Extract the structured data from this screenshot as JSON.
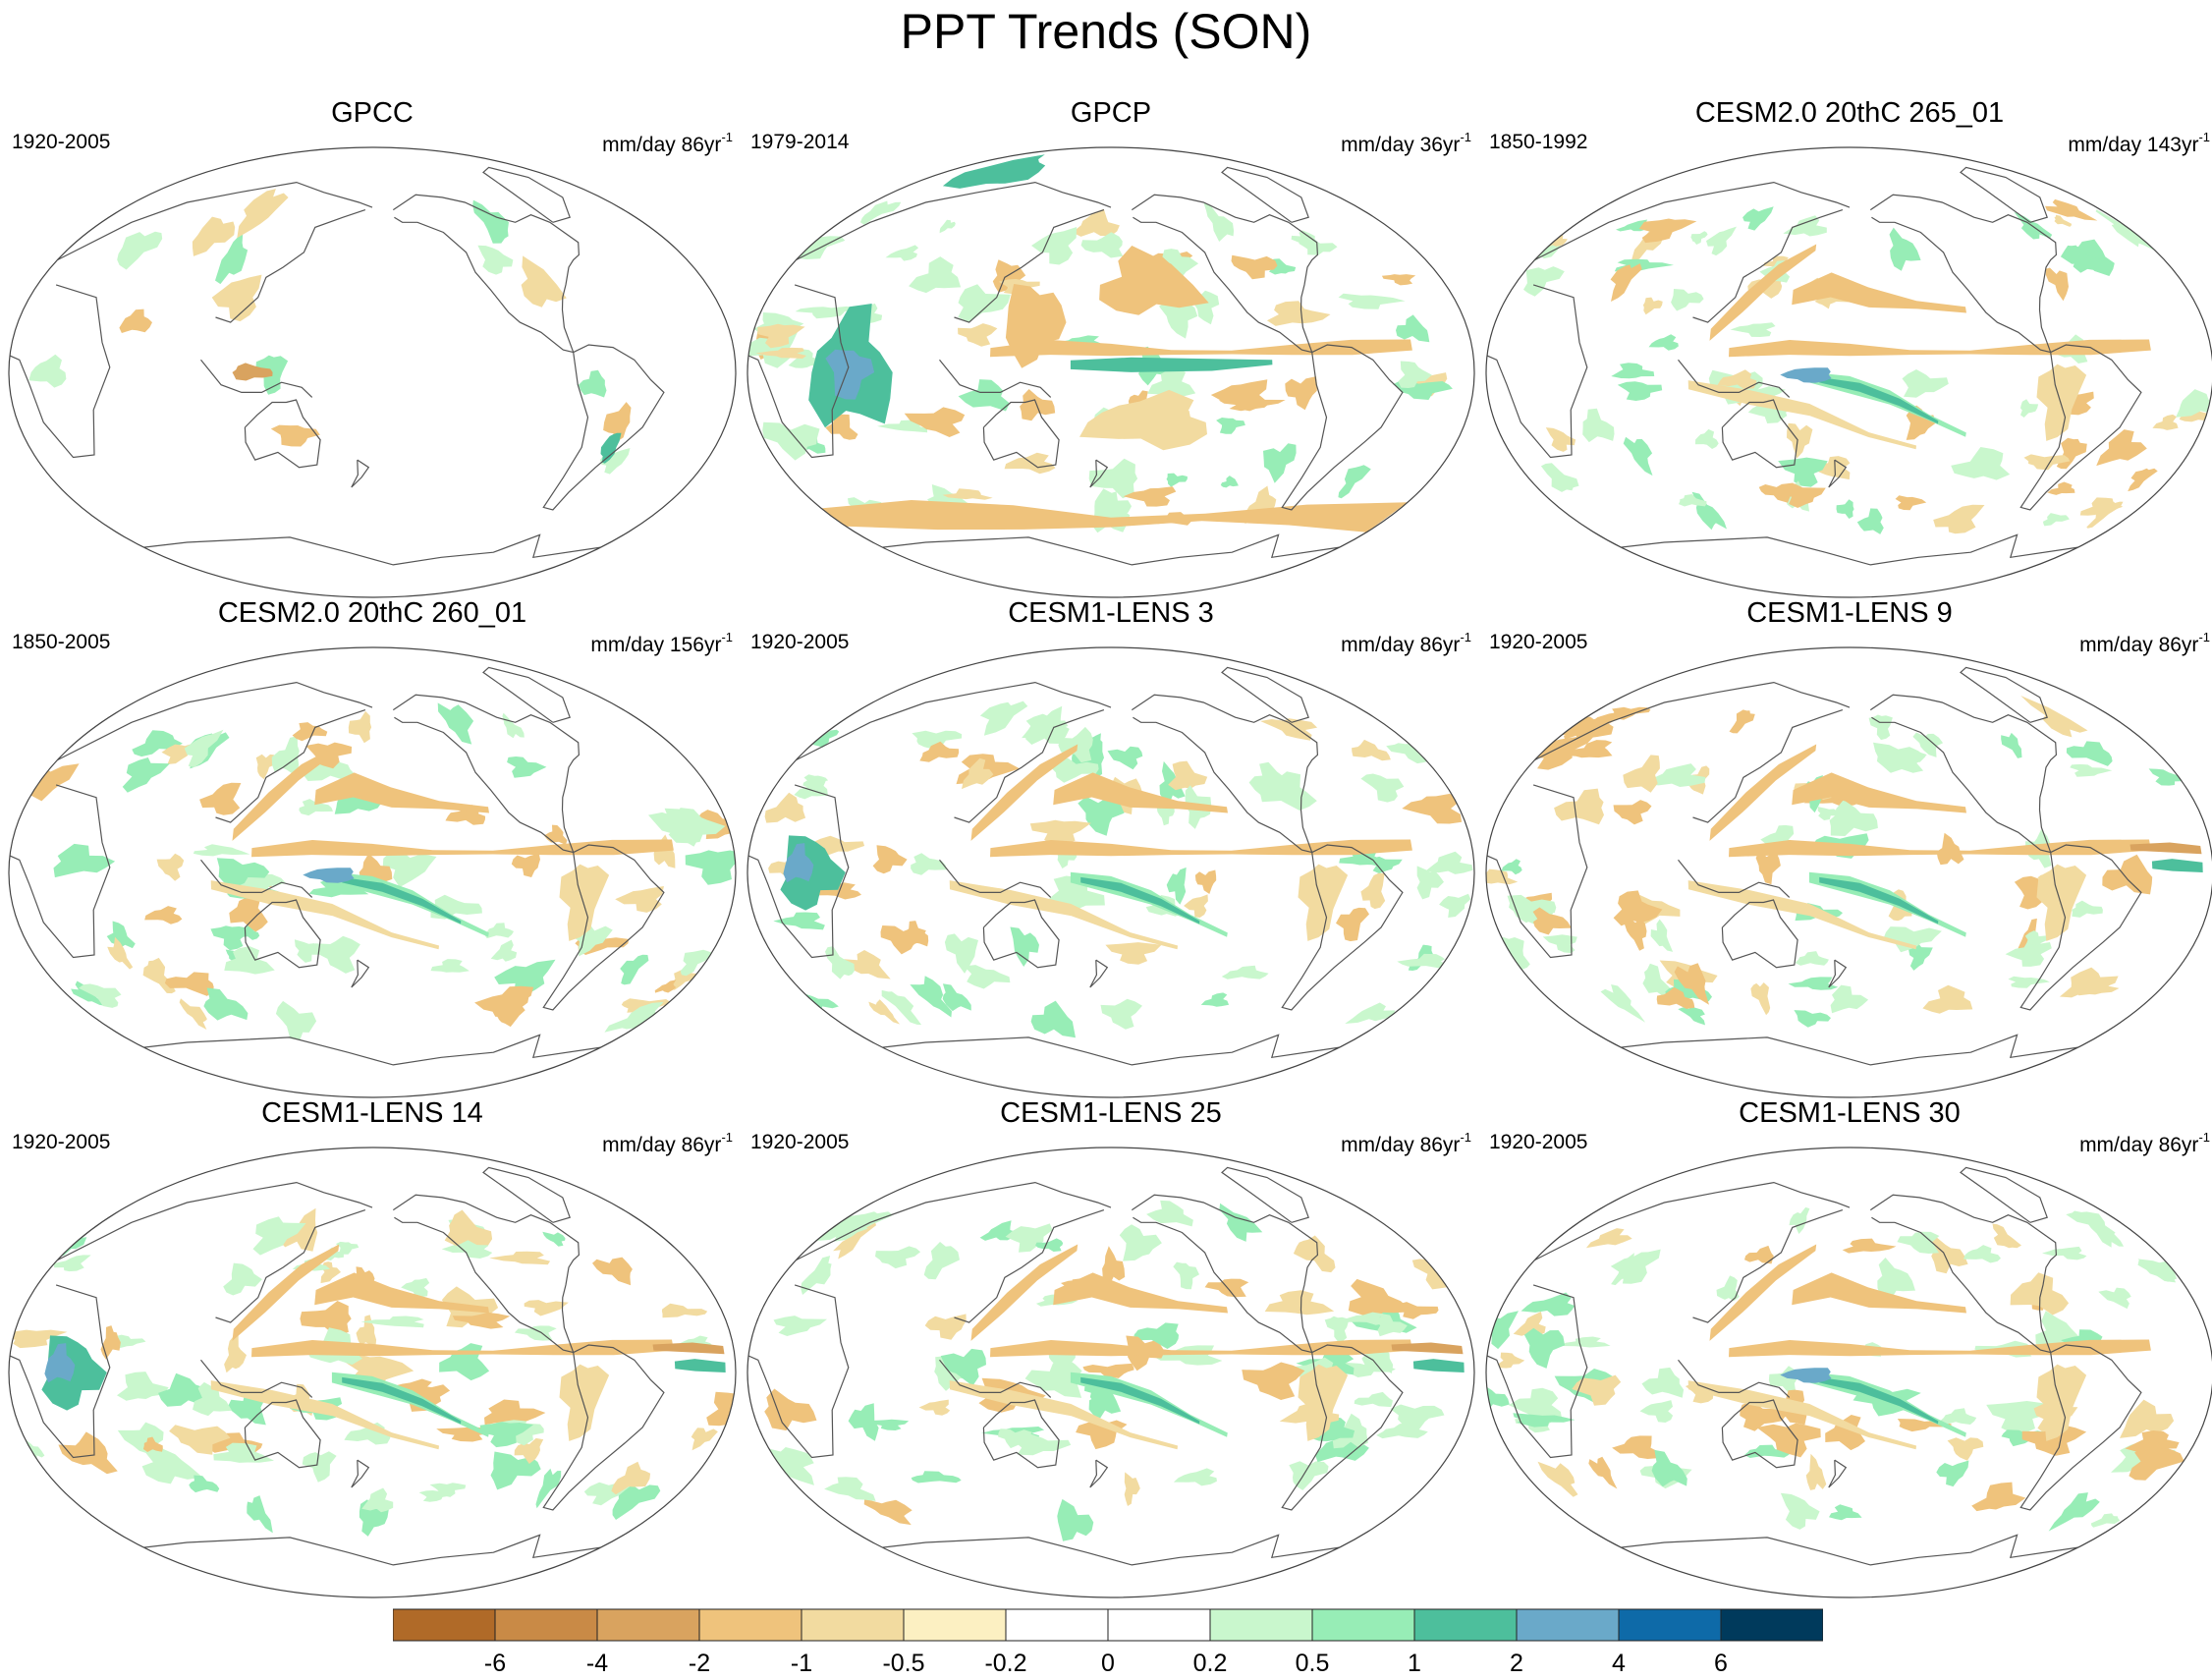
{
  "title": "PPT Trends (SON)",
  "panels": [
    {
      "title": "GPCC",
      "period": "1920-2005",
      "units": "mm/day 86yr",
      "exp": "-1",
      "pattern": "obs_land"
    },
    {
      "title": "GPCP",
      "period": "1979-2014",
      "units": "mm/day 36yr",
      "exp": "-1",
      "pattern": "gpcp"
    },
    {
      "title": "CESM2.0 20thC 265_01",
      "period": "1850-1992",
      "units": "mm/day 143yr",
      "exp": "-1",
      "pattern": "model_spcz"
    },
    {
      "title": "CESM2.0 20thC 260_01",
      "period": "1850-2005",
      "units": "mm/day 156yr",
      "exp": "-1",
      "pattern": "model_spcz"
    },
    {
      "title": "CESM1-LENS 3",
      "period": "1920-2005",
      "units": "mm/day 86yr",
      "exp": "-1",
      "pattern": "model_io"
    },
    {
      "title": "CESM1-LENS 9",
      "period": "1920-2005",
      "units": "mm/day 86yr",
      "exp": "-1",
      "pattern": "model_atl"
    },
    {
      "title": "CESM1-LENS 14",
      "period": "1920-2005",
      "units": "mm/day 86yr",
      "exp": "-1",
      "pattern": "model_io_atl"
    },
    {
      "title": "CESM1-LENS 25",
      "period": "1920-2005",
      "units": "mm/day 86yr",
      "exp": "-1",
      "pattern": "model_atl"
    },
    {
      "title": "CESM1-LENS 30",
      "period": "1920-2005",
      "units": "mm/day 86yr",
      "exp": "-1",
      "pattern": "model_spcz"
    }
  ],
  "colorbar": {
    "labels": [
      "-6",
      "-4",
      "-2",
      "-1",
      "-0.5",
      "-0.2",
      "0",
      "0.2",
      "0.5",
      "1",
      "2",
      "4",
      "6"
    ],
    "colors": [
      "#b06a28",
      "#c98a46",
      "#d9a35f",
      "#efc37c",
      "#f2dba0",
      "#fcf0c2",
      "#ffffff",
      "#ffffff",
      "#c9f7cd",
      "#97edb6",
      "#4dbf9c",
      "#6aa9c9",
      "#0e6aa8",
      "#003a5c"
    ]
  },
  "colors": {
    "dry_strong": "#d9a35f",
    "dry_mid": "#efc37c",
    "dry_light": "#f2dba0",
    "wet_light": "#c9f7cd",
    "wet_mid": "#97edb6",
    "wet_strong": "#4dbf9c",
    "wet_max": "#6aa9c9"
  }
}
